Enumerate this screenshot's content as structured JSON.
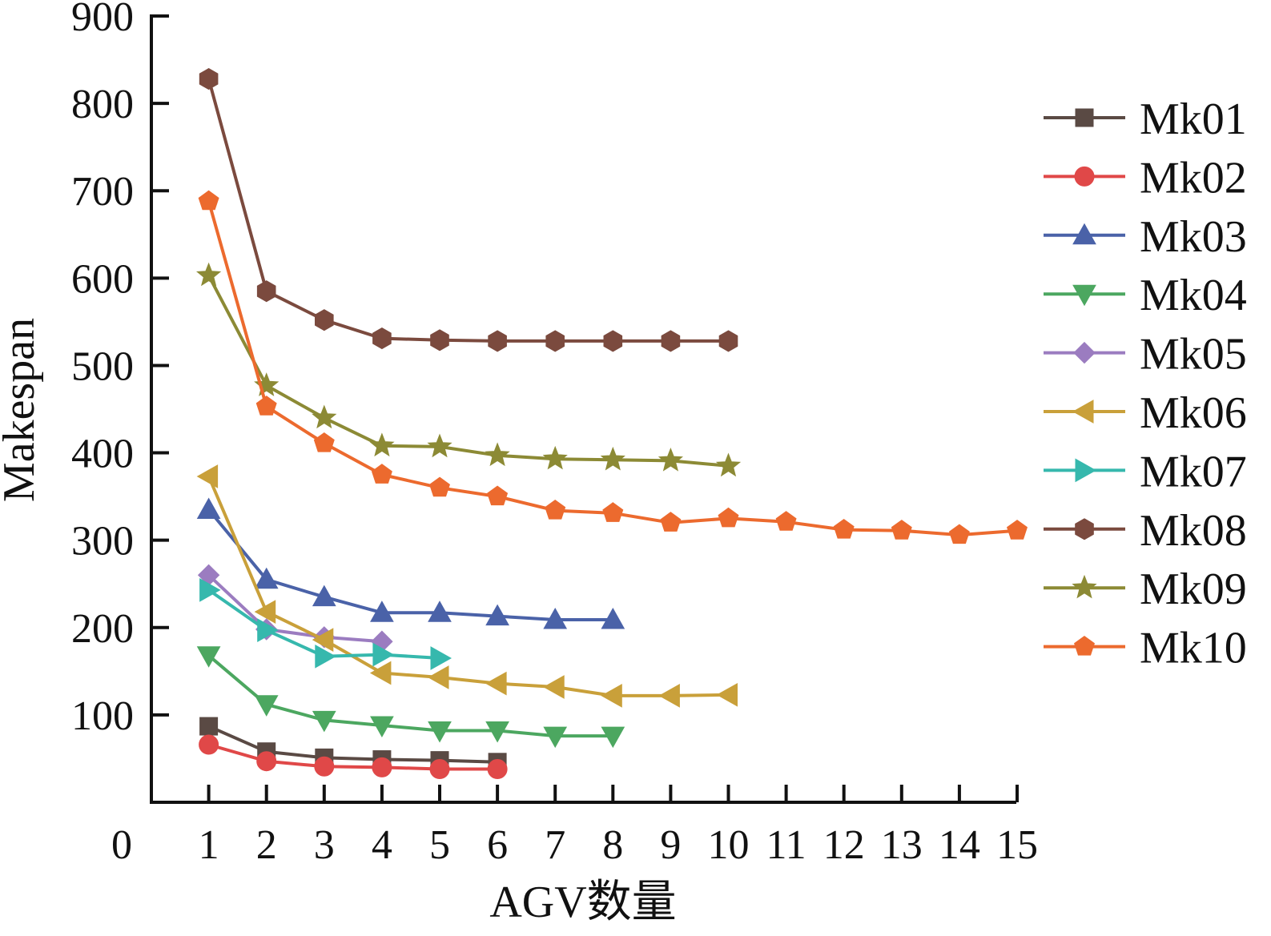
{
  "chart_data": {
    "type": "line",
    "title": "",
    "xlabel": "AGV数量",
    "ylabel": "Makespan",
    "xlim": [
      0,
      15
    ],
    "ylim": [
      0,
      900
    ],
    "x_ticks": [
      "0",
      "1",
      "2",
      "3",
      "4",
      "5",
      "6",
      "7",
      "8",
      "9",
      "10",
      "11",
      "12",
      "13",
      "14",
      "15"
    ],
    "y_ticks": [
      "100",
      "200",
      "300",
      "400",
      "500",
      "600",
      "700",
      "800",
      "900"
    ],
    "grid": false,
    "legend_position": "right",
    "series": [
      {
        "name": "Mk01",
        "marker": "square",
        "color": "#5a4a44",
        "x": [
          1,
          2,
          3,
          4,
          5,
          6
        ],
        "y": [
          87,
          58,
          51,
          49,
          48,
          46
        ]
      },
      {
        "name": "Mk02",
        "marker": "circle",
        "color": "#e04848",
        "x": [
          1,
          2,
          3,
          4,
          5,
          6
        ],
        "y": [
          66,
          47,
          41,
          40,
          38,
          38
        ]
      },
      {
        "name": "Mk03",
        "marker": "triangle-up",
        "color": "#4a62a8",
        "x": [
          1,
          2,
          3,
          4,
          5,
          6,
          7,
          8
        ],
        "y": [
          335,
          255,
          235,
          217,
          217,
          213,
          209,
          209
        ]
      },
      {
        "name": "Mk04",
        "marker": "triangle-down",
        "color": "#4ca760",
        "x": [
          1,
          2,
          3,
          4,
          5,
          6,
          7,
          8
        ],
        "y": [
          168,
          112,
          94,
          88,
          82,
          82,
          76,
          76
        ]
      },
      {
        "name": "Mk05",
        "marker": "diamond",
        "color": "#9b7cc0",
        "x": [
          1,
          2,
          3,
          4
        ],
        "y": [
          260,
          198,
          189,
          184
        ]
      },
      {
        "name": "Mk06",
        "marker": "triangle-left",
        "color": "#c9a03a",
        "x": [
          1,
          2,
          3,
          4,
          5,
          6,
          7,
          8,
          9,
          10
        ],
        "y": [
          373,
          218,
          186,
          148,
          143,
          136,
          132,
          122,
          122,
          123
        ]
      },
      {
        "name": "Mk07",
        "marker": "triangle-right",
        "color": "#36b8ad",
        "x": [
          1,
          2,
          3,
          4,
          5
        ],
        "y": [
          243,
          197,
          167,
          169,
          165
        ]
      },
      {
        "name": "Mk08",
        "marker": "hexagon",
        "color": "#7b4a3e",
        "x": [
          1,
          2,
          3,
          4,
          5,
          6,
          7,
          8,
          9,
          10
        ],
        "y": [
          828,
          585,
          552,
          531,
          529,
          528,
          528,
          528,
          528,
          528
        ]
      },
      {
        "name": "Mk09",
        "marker": "star",
        "color": "#8c8a35",
        "x": [
          1,
          2,
          3,
          4,
          5,
          6,
          7,
          8,
          9,
          10
        ],
        "y": [
          603,
          477,
          440,
          408,
          407,
          397,
          393,
          392,
          391,
          385
        ]
      },
      {
        "name": "Mk10",
        "marker": "pentagon",
        "color": "#ec6a2e",
        "x": [
          1,
          2,
          3,
          4,
          5,
          6,
          7,
          8,
          9,
          10,
          11,
          12,
          13,
          14,
          15
        ],
        "y": [
          688,
          453,
          411,
          375,
          360,
          350,
          334,
          331,
          320,
          325,
          321,
          312,
          311,
          306,
          311
        ]
      }
    ]
  }
}
